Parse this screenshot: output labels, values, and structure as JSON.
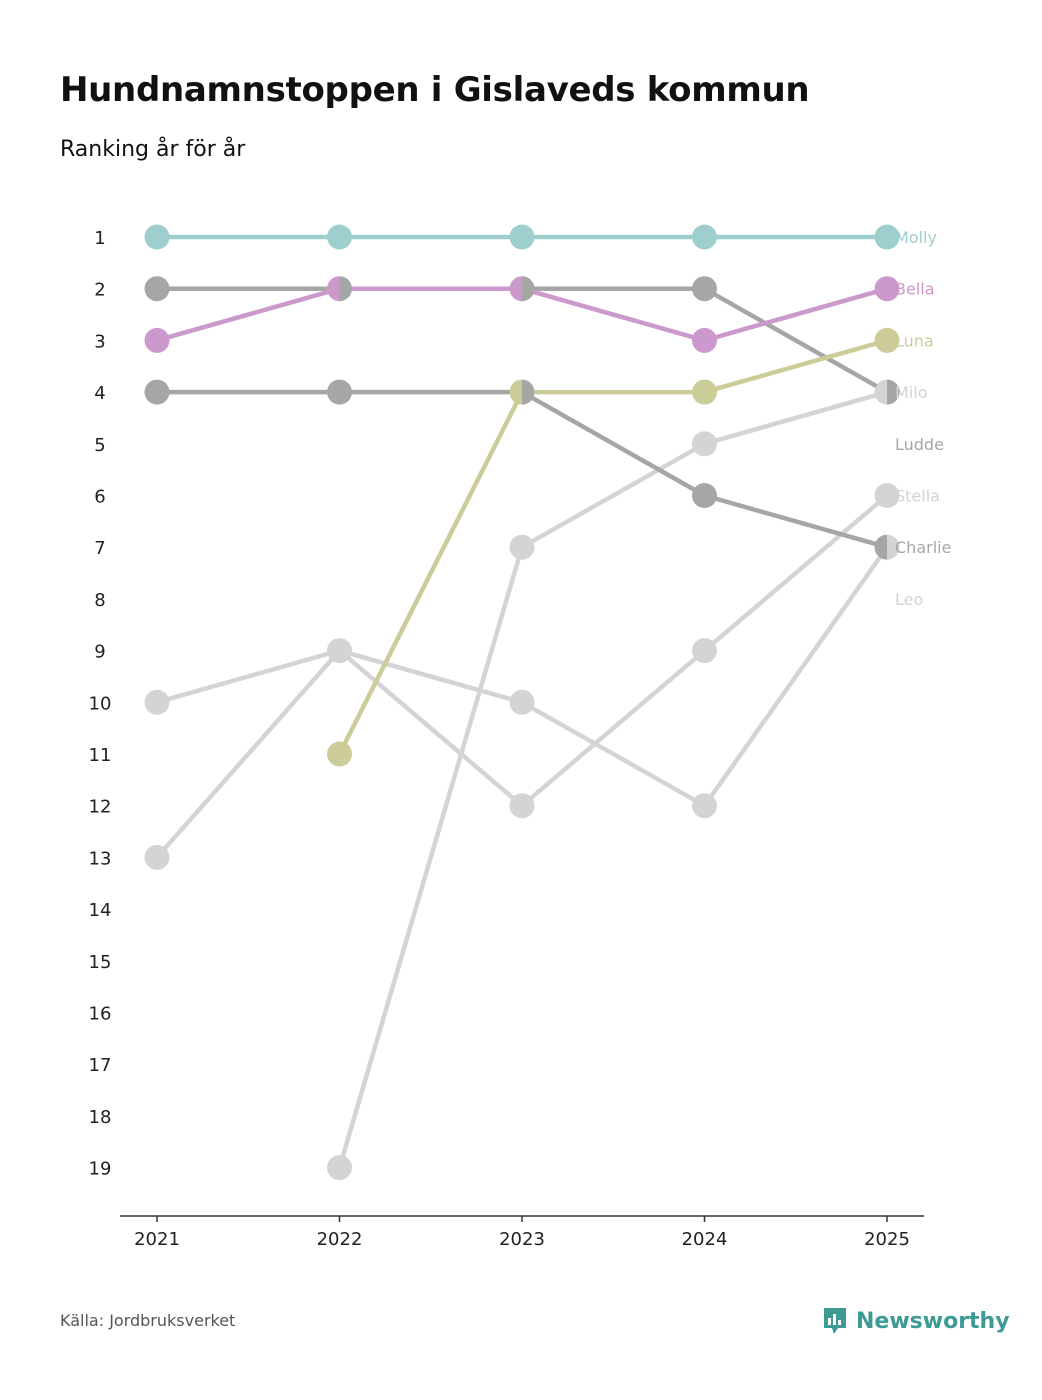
{
  "title": "Hundnamnstoppen i Gislaveds kommun",
  "subtitle": "Ranking år för år",
  "source": "Källa: Jordbruksverket",
  "brand": {
    "name": "Newsworthy",
    "icon": "newsworthy-logo-icon",
    "color": "#3d9a94"
  },
  "chart_data": {
    "type": "line",
    "chart_style": "bump",
    "x": [
      "2021",
      "2022",
      "2023",
      "2024",
      "2025"
    ],
    "y_ticks": [
      "1",
      "2",
      "3",
      "4",
      "5",
      "6",
      "7",
      "8",
      "9",
      "10",
      "11",
      "12",
      "13",
      "14",
      "15",
      "16",
      "17",
      "18",
      "19"
    ],
    "ylim": [
      1,
      19
    ],
    "y_reversed": true,
    "series": [
      {
        "name": "Molly",
        "color": "#9ecfce",
        "values": [
          1,
          1,
          1,
          1,
          1
        ]
      },
      {
        "name": "Bella",
        "color": "#cc99cc",
        "values": [
          3,
          2,
          2,
          3,
          2
        ]
      },
      {
        "name": "Luna",
        "color": "#cccc99",
        "values": [
          null,
          11,
          4,
          4,
          3
        ]
      },
      {
        "name": "Milo",
        "color": "#d4d4d4",
        "values": [
          null,
          19,
          7,
          5,
          4
        ]
      },
      {
        "name": "Ludde",
        "color": "#a6a6a6",
        "values": [
          2,
          2,
          2,
          2,
          4
        ]
      },
      {
        "name": "Stella",
        "color": "#d4d4d4",
        "values": [
          13,
          9,
          12,
          9,
          6
        ]
      },
      {
        "name": "Charlie",
        "color": "#a6a6a6",
        "values": [
          4,
          4,
          4,
          6,
          7
        ]
      },
      {
        "name": "Leo",
        "color": "#d4d4d4",
        "values": [
          10,
          9,
          10,
          12,
          7
        ]
      }
    ],
    "label_ranks": [
      1,
      2,
      3,
      4,
      5,
      6,
      7,
      8
    ]
  }
}
